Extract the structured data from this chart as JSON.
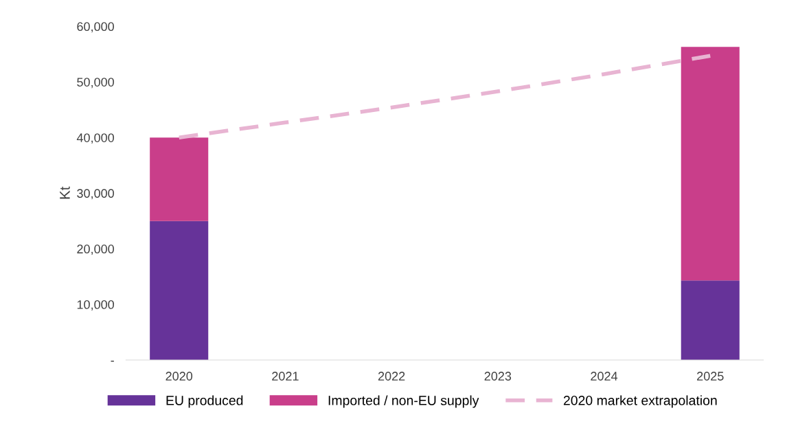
{
  "chart_data": {
    "type": "bar",
    "ylabel": "Kt",
    "stacked": true,
    "categories": [
      "2020",
      "2021",
      "2022",
      "2023",
      "2024",
      "2025"
    ],
    "series": [
      {
        "name": "EU produced",
        "color": "#663399",
        "values": [
          25000,
          null,
          null,
          null,
          null,
          14300
        ]
      },
      {
        "name": "Imported / non-EU supply",
        "color": "#c93e8a",
        "values": [
          15000,
          null,
          null,
          null,
          null,
          42000
        ]
      },
      {
        "name": "2020 market extrapolation",
        "type": "line",
        "line_style": "dashed",
        "color": "#e8b4d2",
        "values": [
          40000,
          42700,
          45400,
          48300,
          51400,
          54700
        ]
      }
    ],
    "ylim": [
      0,
      60000
    ],
    "yticks": [
      {
        "value": 0,
        "label": "-"
      },
      {
        "value": 10000,
        "label": "10,000"
      },
      {
        "value": 20000,
        "label": "20,000"
      },
      {
        "value": 30000,
        "label": "30,000"
      },
      {
        "value": 40000,
        "label": "40,000"
      },
      {
        "value": 50000,
        "label": "50,000"
      },
      {
        "value": 60000,
        "label": "60,000"
      }
    ],
    "legend": "bottom"
  }
}
